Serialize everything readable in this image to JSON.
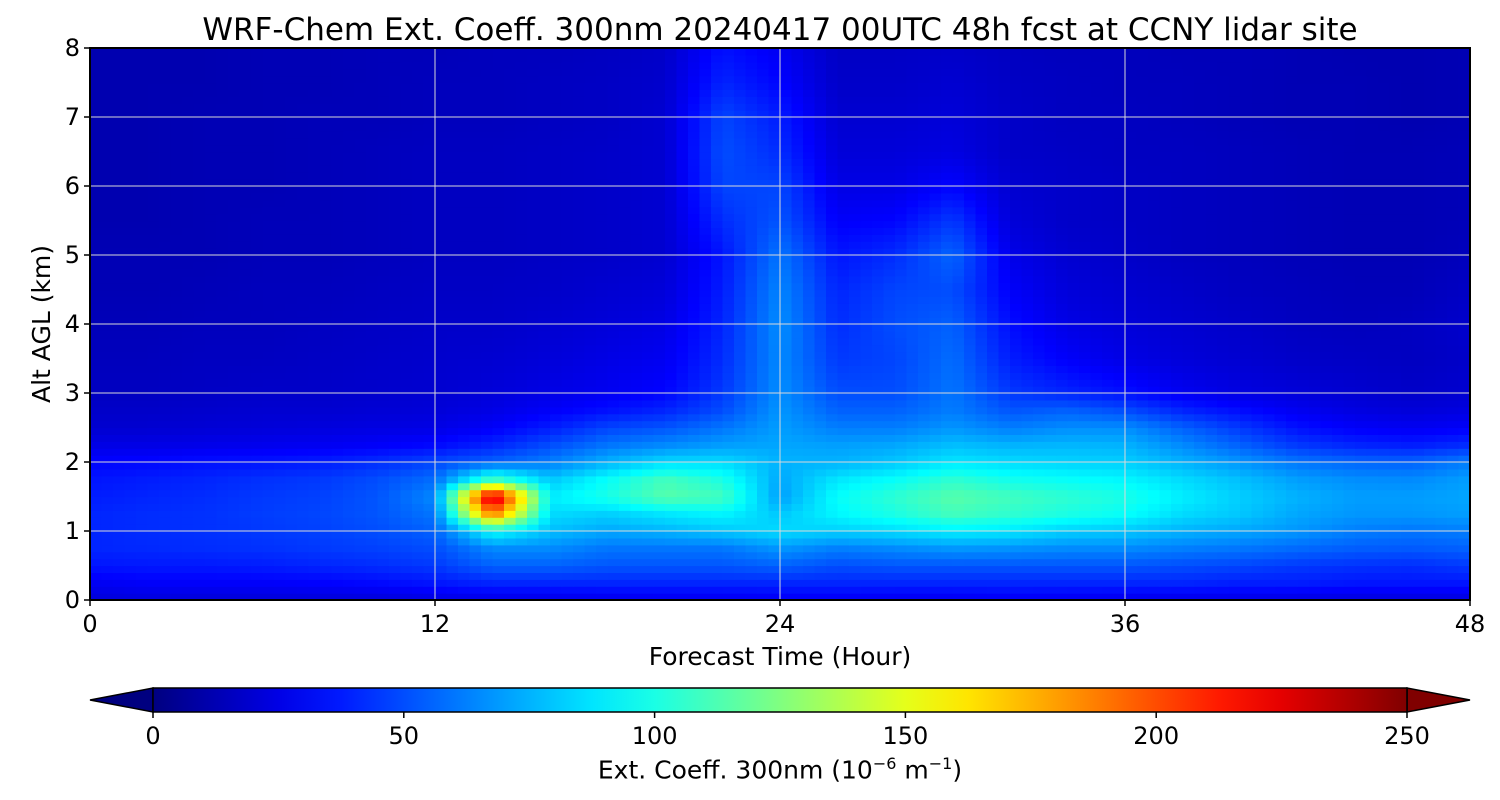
{
  "chart_data": {
    "type": "heatmap",
    "title": "WRF-Chem Ext. Coeff. 300nm  20240417 00UTC 48h fcst at CCNY lidar site",
    "xlabel": "Forecast Time (Hour)",
    "ylabel": "Alt AGL (km)",
    "xlim": [
      0,
      48
    ],
    "ylim": [
      0,
      8
    ],
    "x_ticks": [
      0,
      12,
      24,
      36,
      48
    ],
    "y_ticks": [
      0,
      1,
      2,
      3,
      4,
      5,
      6,
      7,
      8
    ],
    "grid": true,
    "colormap": "jet",
    "colorbar": {
      "orientation": "horizontal",
      "range": [
        0,
        250
      ],
      "ticks": [
        0,
        50,
        100,
        150,
        200,
        250
      ],
      "extend": "both",
      "label_text": "Ext. Coeff. 300nm  (10",
      "label_exp1": "−6",
      "label_mid": " m",
      "label_exp2": "−1",
      "label_end": ")"
    },
    "hours": [
      0,
      2,
      4,
      6,
      8,
      10,
      12,
      14,
      16,
      18,
      20,
      22,
      24,
      26,
      28,
      30,
      32,
      34,
      36,
      38,
      40,
      42,
      44,
      46,
      48
    ],
    "altitudes_km": [
      0,
      0.25,
      0.5,
      0.75,
      1,
      1.25,
      1.5,
      1.75,
      2,
      2.25,
      2.5,
      2.75,
      3,
      3.5,
      4,
      4.5,
      5,
      5.5,
      6,
      6.5,
      7,
      7.5,
      8
    ],
    "values": [
      [
        22,
        23,
        22,
        22,
        22,
        22,
        24,
        25,
        25,
        26,
        27,
        27,
        28,
        28,
        27,
        27,
        28,
        27,
        26,
        25,
        25,
        24,
        23,
        23,
        23
      ],
      [
        28,
        30,
        30,
        30,
        31,
        33,
        36,
        40,
        40,
        40,
        40,
        40,
        40,
        40,
        40,
        40,
        40,
        40,
        40,
        40,
        38,
        38,
        36,
        36,
        36
      ],
      [
        36,
        37,
        37,
        38,
        40,
        42,
        45,
        55,
        55,
        52,
        52,
        52,
        55,
        50,
        52,
        52,
        52,
        52,
        52,
        50,
        48,
        45,
        43,
        42,
        45
      ],
      [
        40,
        41,
        42,
        43,
        45,
        47,
        50,
        65,
        65,
        60,
        60,
        60,
        68,
        62,
        65,
        68,
        67,
        65,
        65,
        62,
        60,
        57,
        54,
        53,
        55
      ],
      [
        40,
        42,
        43,
        45,
        47,
        50,
        55,
        95,
        78,
        72,
        75,
        80,
        85,
        82,
        85,
        90,
        88,
        82,
        80,
        75,
        72,
        68,
        62,
        60,
        62
      ],
      [
        40,
        42,
        43,
        46,
        48,
        52,
        60,
        190,
        85,
        82,
        88,
        92,
        80,
        92,
        100,
        110,
        105,
        100,
        95,
        85,
        80,
        72,
        68,
        68,
        70
      ],
      [
        38,
        40,
        42,
        45,
        47,
        52,
        65,
        240,
        90,
        100,
        115,
        110,
        70,
        95,
        105,
        115,
        110,
        105,
        100,
        90,
        82,
        75,
        70,
        70,
        72
      ],
      [
        36,
        38,
        40,
        43,
        45,
        50,
        58,
        110,
        80,
        95,
        110,
        100,
        72,
        88,
        95,
        105,
        98,
        95,
        92,
        85,
        78,
        70,
        66,
        65,
        70
      ],
      [
        32,
        33,
        35,
        36,
        38,
        42,
        48,
        55,
        62,
        75,
        85,
        85,
        75,
        75,
        80,
        88,
        85,
        83,
        82,
        75,
        68,
        60,
        56,
        55,
        62
      ],
      [
        25,
        25,
        26,
        27,
        28,
        30,
        33,
        40,
        50,
        60,
        65,
        70,
        72,
        70,
        72,
        78,
        75,
        76,
        75,
        65,
        55,
        45,
        40,
        38,
        42
      ],
      [
        20,
        20,
        21,
        22,
        23,
        24,
        25,
        30,
        38,
        48,
        52,
        60,
        70,
        62,
        62,
        68,
        62,
        66,
        66,
        55,
        45,
        35,
        30,
        28,
        30
      ],
      [
        18,
        18,
        19,
        20,
        20,
        21,
        22,
        25,
        30,
        35,
        40,
        50,
        68,
        55,
        55,
        62,
        52,
        55,
        50,
        40,
        34,
        28,
        24,
        22,
        24
      ],
      [
        16,
        16,
        17,
        18,
        18,
        19,
        20,
        22,
        25,
        28,
        32,
        45,
        66,
        50,
        50,
        60,
        45,
        40,
        35,
        28,
        24,
        22,
        20,
        18,
        20
      ],
      [
        15,
        15,
        16,
        16,
        17,
        18,
        19,
        20,
        22,
        25,
        28,
        42,
        65,
        45,
        48,
        58,
        38,
        30,
        25,
        22,
        20,
        18,
        17,
        16,
        18
      ],
      [
        14,
        14,
        15,
        15,
        16,
        17,
        18,
        18,
        20,
        22,
        25,
        40,
        66,
        42,
        50,
        55,
        34,
        25,
        22,
        20,
        18,
        16,
        15,
        16,
        19
      ],
      [
        13,
        13,
        14,
        15,
        15,
        16,
        17,
        17,
        18,
        20,
        22,
        38,
        64,
        40,
        48,
        50,
        30,
        22,
        20,
        18,
        16,
        15,
        14,
        14,
        17
      ],
      [
        13,
        13,
        13,
        14,
        14,
        15,
        16,
        16,
        17,
        18,
        20,
        36,
        60,
        36,
        42,
        56,
        26,
        20,
        18,
        16,
        15,
        14,
        13,
        13,
        15
      ],
      [
        12,
        12,
        13,
        14,
        14,
        15,
        16,
        16,
        17,
        18,
        20,
        42,
        52,
        30,
        32,
        45,
        22,
        18,
        17,
        16,
        15,
        14,
        13,
        13,
        14
      ],
      [
        12,
        12,
        13,
        13,
        14,
        15,
        16,
        16,
        17,
        18,
        20,
        48,
        48,
        25,
        25,
        32,
        20,
        18,
        17,
        16,
        15,
        14,
        13,
        13,
        14
      ],
      [
        12,
        12,
        13,
        13,
        14,
        15,
        16,
        16,
        17,
        18,
        20,
        50,
        42,
        22,
        22,
        24,
        18,
        17,
        16,
        16,
        15,
        14,
        13,
        13,
        14
      ],
      [
        12,
        12,
        13,
        13,
        14,
        14,
        15,
        15,
        16,
        17,
        20,
        48,
        38,
        20,
        20,
        22,
        18,
        16,
        16,
        15,
        14,
        13,
        13,
        12,
        13
      ],
      [
        12,
        12,
        12,
        13,
        13,
        14,
        15,
        15,
        16,
        17,
        19,
        40,
        32,
        18,
        18,
        20,
        17,
        16,
        15,
        15,
        14,
        13,
        13,
        12,
        13
      ],
      [
        12,
        12,
        12,
        13,
        13,
        14,
        14,
        15,
        15,
        16,
        18,
        35,
        28,
        17,
        17,
        18,
        16,
        15,
        15,
        14,
        14,
        13,
        12,
        12,
        13
      ]
    ]
  }
}
